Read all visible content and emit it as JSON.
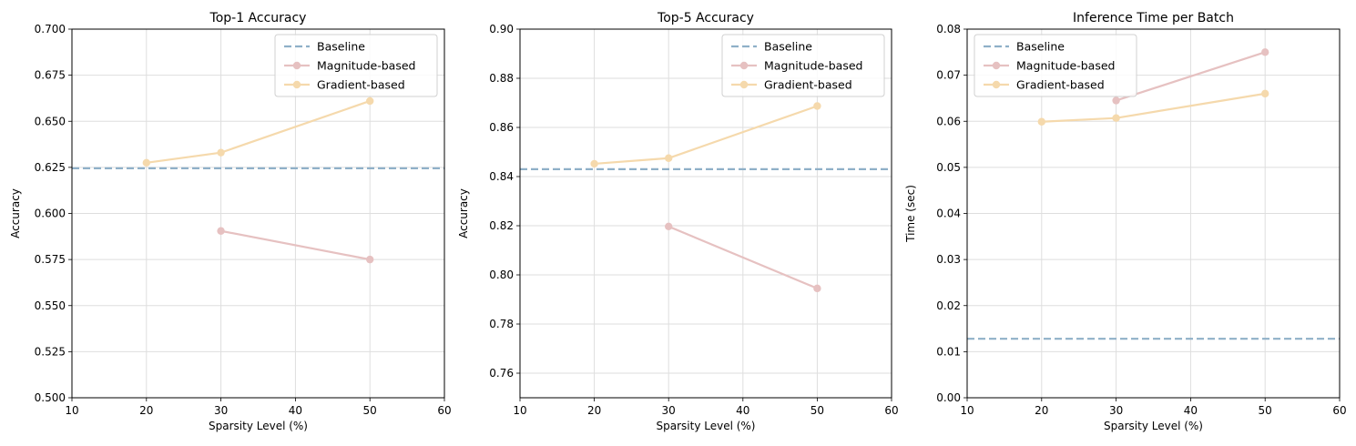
{
  "colors": {
    "baseline": "#8FB0C8",
    "magnitude": "#E6C1C1",
    "gradient": "#F5D9AC",
    "grid": "#DEDEDE",
    "axis": "#000000"
  },
  "chart_data": [
    {
      "type": "line",
      "title": "Top-1 Accuracy",
      "xlabel": "Sparsity Level (%)",
      "ylabel": "Accuracy",
      "xlim": [
        10,
        60
      ],
      "ylim": [
        0.5,
        0.7
      ],
      "xticks": [
        "10",
        "20",
        "30",
        "40",
        "50",
        "60"
      ],
      "yticks": [
        "0.500",
        "0.525",
        "0.550",
        "0.575",
        "0.600",
        "0.625",
        "0.650",
        "0.675",
        "0.700"
      ],
      "grid": true,
      "legend_position": "top-right",
      "baseline": {
        "name": "Baseline",
        "value": 0.6245
      },
      "series": [
        {
          "name": "Magnitude-based",
          "x": [
            30,
            50
          ],
          "y": [
            0.5905,
            0.575
          ]
        },
        {
          "name": "Gradient-based",
          "x": [
            20,
            30,
            50
          ],
          "y": [
            0.6275,
            0.633,
            0.661
          ]
        }
      ]
    },
    {
      "type": "line",
      "title": "Top-5 Accuracy",
      "xlabel": "Sparsity Level (%)",
      "ylabel": "Accuracy",
      "xlim": [
        10,
        60
      ],
      "ylim": [
        0.75,
        0.9
      ],
      "xticks": [
        "10",
        "20",
        "30",
        "40",
        "50",
        "60"
      ],
      "yticks": [
        "0.76",
        "0.78",
        "0.80",
        "0.82",
        "0.84",
        "0.86",
        "0.88",
        "0.90"
      ],
      "grid": true,
      "legend_position": "top-right",
      "baseline": {
        "name": "Baseline",
        "value": 0.843
      },
      "series": [
        {
          "name": "Magnitude-based",
          "x": [
            30,
            50
          ],
          "y": [
            0.8197,
            0.7945
          ]
        },
        {
          "name": "Gradient-based",
          "x": [
            20,
            30,
            50
          ],
          "y": [
            0.8452,
            0.8475,
            0.8687
          ]
        }
      ]
    },
    {
      "type": "line",
      "title": "Inference Time per Batch",
      "xlabel": "Sparsity Level (%)",
      "ylabel": "Time (sec)",
      "xlim": [
        10,
        60
      ],
      "ylim": [
        0,
        0.08
      ],
      "xticks": [
        "10",
        "20",
        "30",
        "40",
        "50",
        "60"
      ],
      "yticks": [
        "0.00",
        "0.01",
        "0.02",
        "0.03",
        "0.04",
        "0.05",
        "0.06",
        "0.07",
        "0.08"
      ],
      "grid": true,
      "legend_position": "top-left",
      "baseline": {
        "name": "Baseline",
        "value": 0.0128
      },
      "series": [
        {
          "name": "Magnitude-based",
          "x": [
            30,
            50
          ],
          "y": [
            0.0645,
            0.075
          ]
        },
        {
          "name": "Gradient-based",
          "x": [
            20,
            30,
            50
          ],
          "y": [
            0.0599,
            0.0607,
            0.066
          ]
        }
      ]
    }
  ]
}
